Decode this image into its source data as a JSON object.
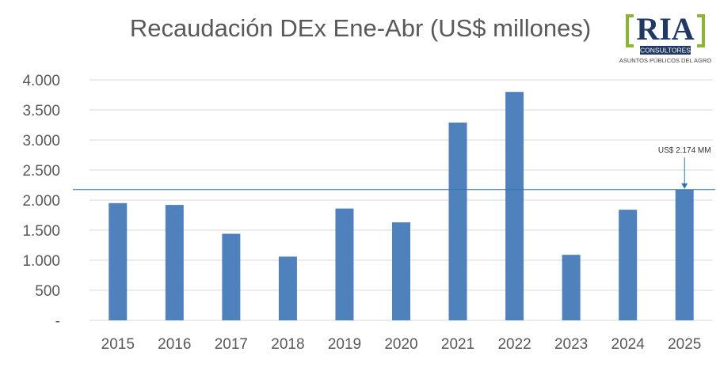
{
  "chart_data": {
    "type": "bar",
    "title": "Recaudación DEx Ene-Abr (US$ millones)",
    "categories": [
      "2015",
      "2016",
      "2017",
      "2018",
      "2019",
      "2020",
      "2021",
      "2022",
      "2023",
      "2024",
      "2025"
    ],
    "values": [
      1950,
      1920,
      1440,
      1060,
      1860,
      1630,
      3290,
      3800,
      1090,
      1840,
      2174
    ],
    "ylim": [
      0,
      4000
    ],
    "yticks": [
      0,
      500,
      1000,
      1500,
      2000,
      2500,
      3000,
      3500,
      4000
    ],
    "ytick_labels": [
      "-",
      "500",
      "1.000",
      "1.500",
      "2.000",
      "2.500",
      "3.000",
      "3.500",
      "4.000"
    ],
    "grid": true,
    "reference_line": 2174,
    "annotation": {
      "text": "US$ 2.174 MM",
      "category": "2025"
    },
    "colors": {
      "bar": "#4f81bd",
      "grid": "#d9d9d9",
      "reference_line": "#2e75b6",
      "text": "#595959"
    }
  },
  "logo": {
    "main": "RIA",
    "sub": "CONSULTORES",
    "tagline": "ASUNTOS PÚBLICOS DEL AGRO",
    "colors": {
      "bracket": "#8db33a",
      "text": "#1f3864",
      "band": "#1f3864"
    }
  }
}
